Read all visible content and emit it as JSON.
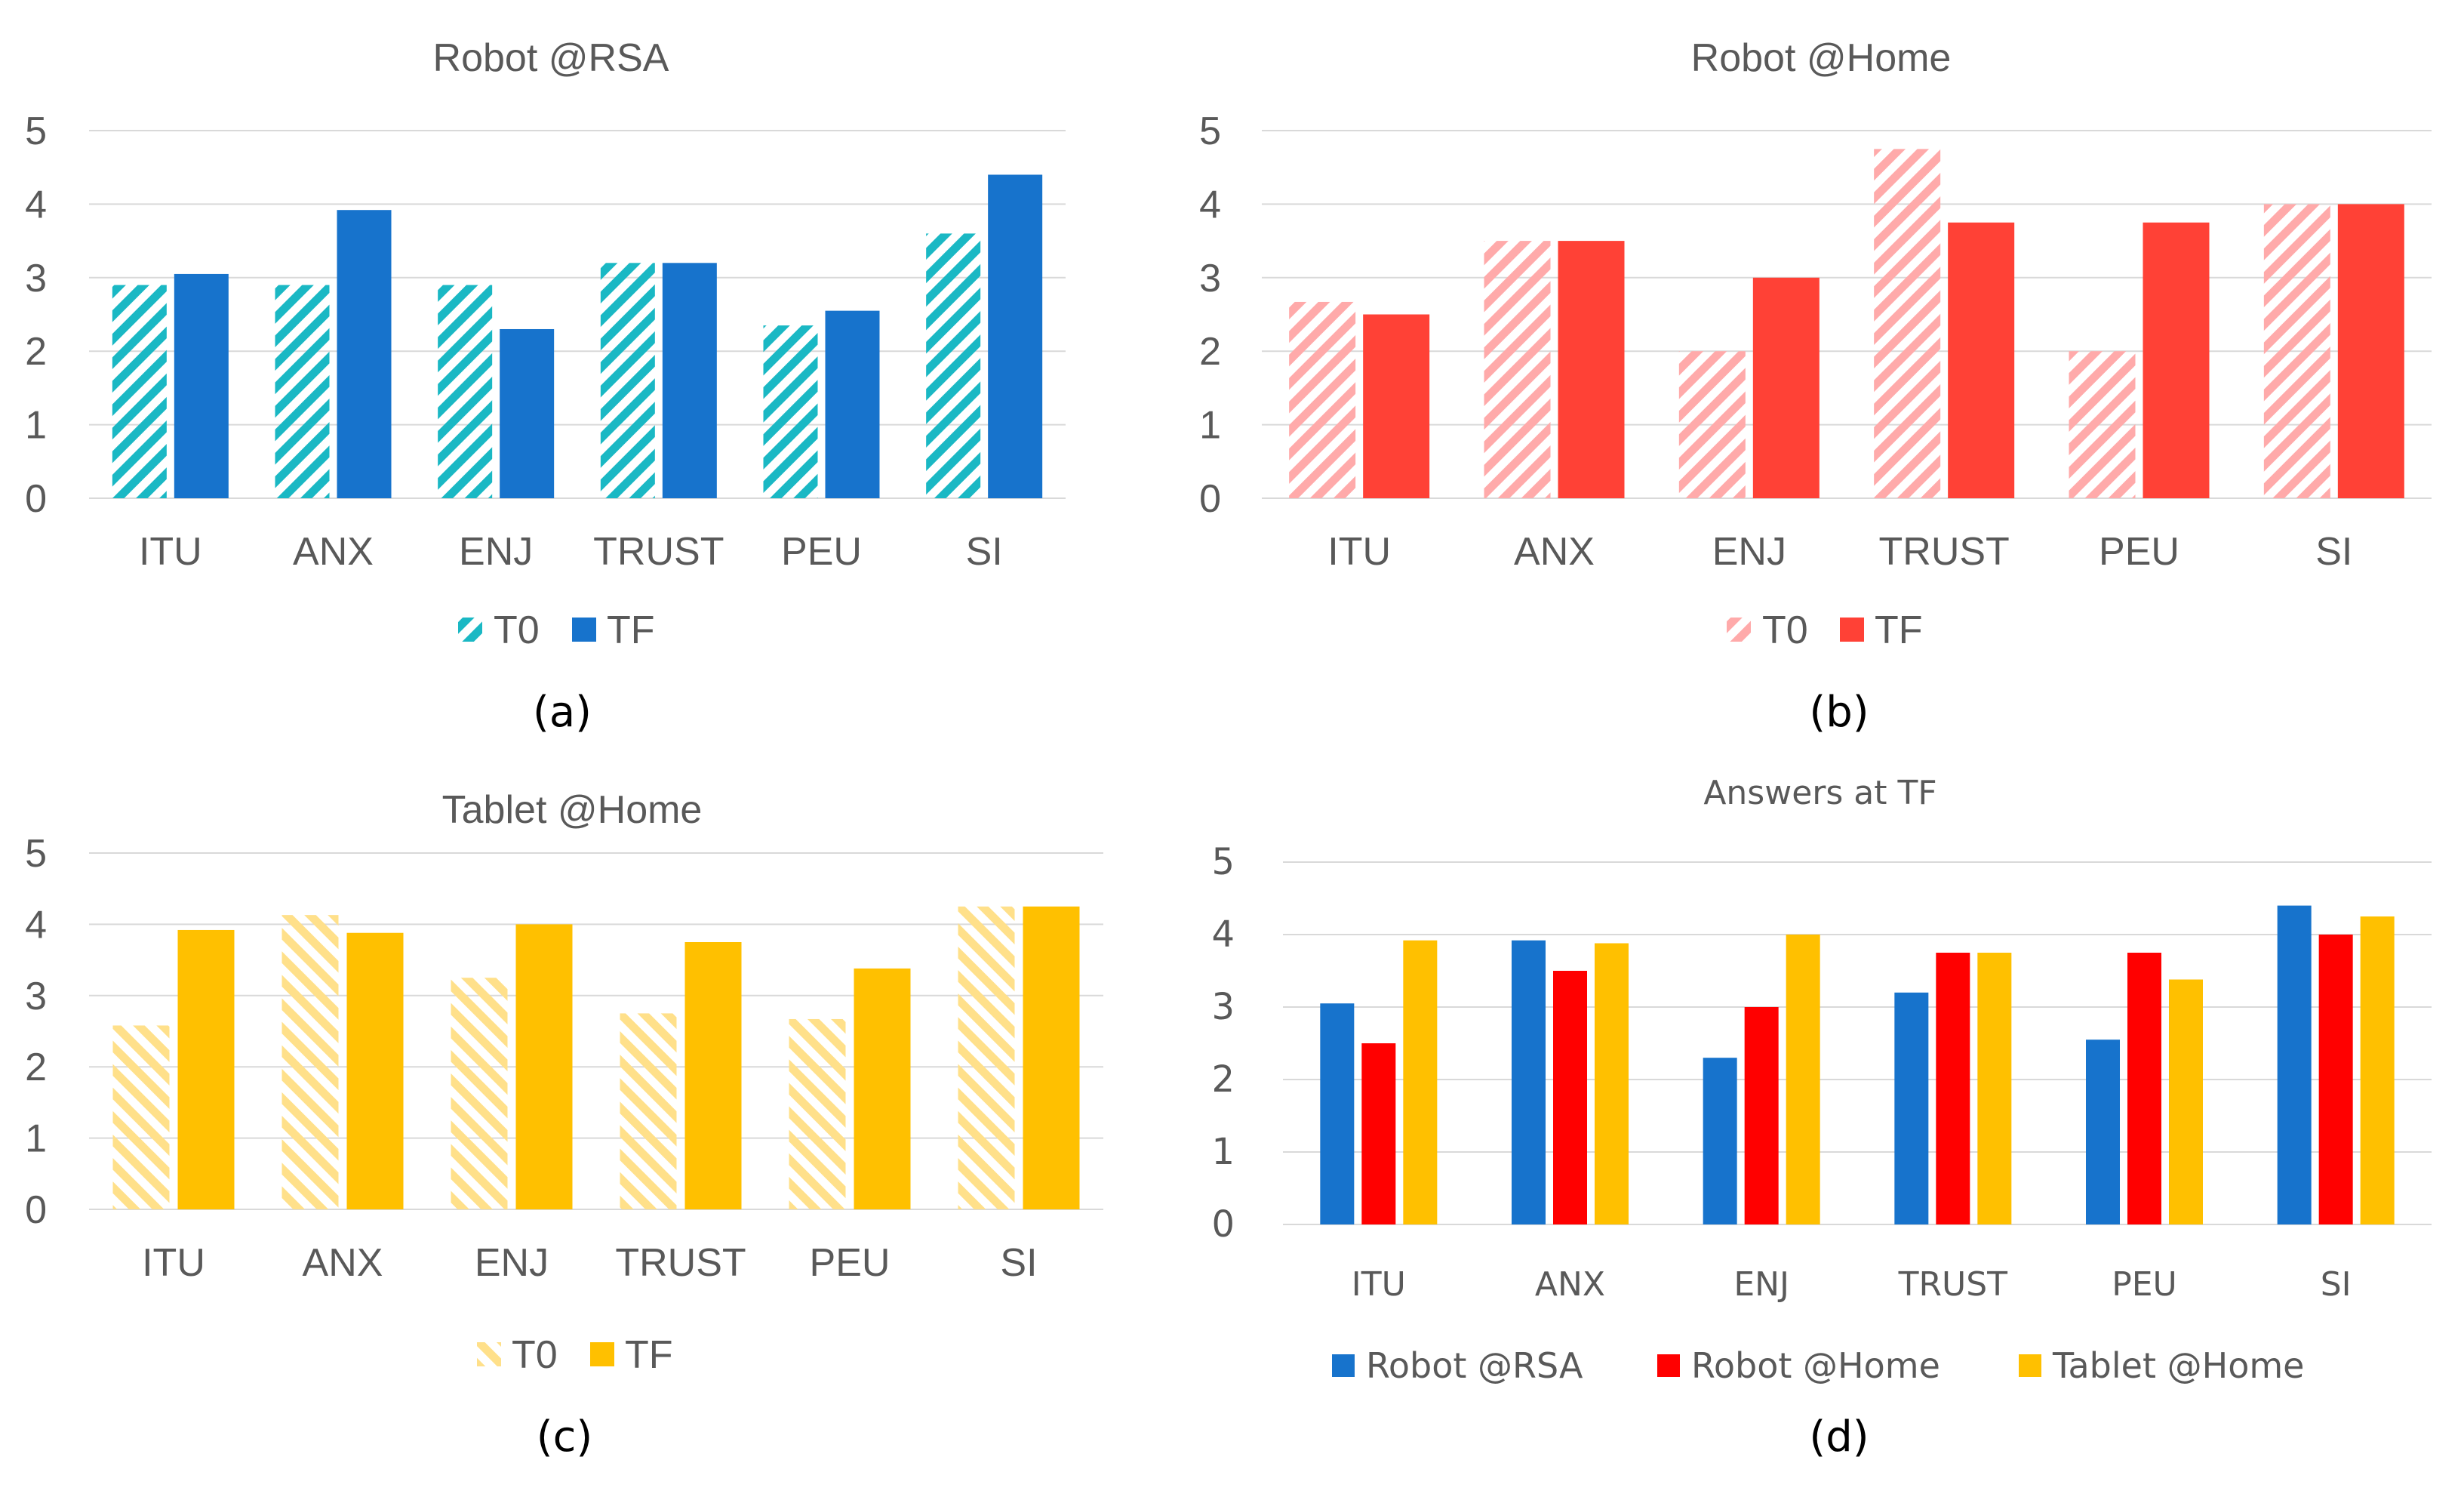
{
  "colors": {
    "a_T0": "#1ab8c4",
    "a_TF": "#1773cc",
    "b_T0": "#ffaaaa",
    "b_TF": "#ff4136",
    "c_T0": "#ffe08a",
    "c_TF": "#ffc000",
    "d_s1": "#1773cc",
    "d_s2": "#ff0000",
    "d_s3": "#ffc000"
  },
  "chart_data": [
    {
      "id": "a",
      "type": "bar",
      "title": "Robot @RSA",
      "caption": "(a)",
      "categories": [
        "ITU",
        "ANX",
        "ENJ",
        "TRUST",
        "PEU",
        "SI"
      ],
      "ylim": [
        0,
        5
      ],
      "yticks": [
        "0",
        "1",
        "2",
        "3",
        "4",
        "5"
      ],
      "grid": true,
      "legend_position": "bottom",
      "series": [
        {
          "name": "T0",
          "pattern": "hatch",
          "values": [
            2.9,
            2.9,
            2.9,
            3.2,
            2.35,
            3.6
          ]
        },
        {
          "name": "TF",
          "pattern": "solid",
          "values": [
            3.05,
            3.92,
            2.3,
            3.2,
            2.55,
            4.4
          ]
        }
      ]
    },
    {
      "id": "b",
      "type": "bar",
      "title": "Robot @Home",
      "caption": "(b)",
      "categories": [
        "ITU",
        "ANX",
        "ENJ",
        "TRUST",
        "PEU",
        "SI"
      ],
      "ylim": [
        0,
        5
      ],
      "yticks": [
        "0",
        "1",
        "2",
        "3",
        "4",
        "5"
      ],
      "grid": true,
      "legend_position": "bottom",
      "series": [
        {
          "name": "T0",
          "pattern": "hatch",
          "values": [
            2.67,
            3.5,
            2.0,
            4.75,
            2.0,
            4.0
          ]
        },
        {
          "name": "TF",
          "pattern": "solid",
          "values": [
            2.5,
            3.5,
            3.0,
            3.75,
            3.75,
            4.0
          ]
        }
      ]
    },
    {
      "id": "c",
      "type": "bar",
      "title": "Tablet @Home",
      "caption": "(c)",
      "categories": [
        "ITU",
        "ANX",
        "ENJ",
        "TRUST",
        "PEU",
        "SI"
      ],
      "ylim": [
        0,
        5
      ],
      "yticks": [
        "0",
        "1",
        "2",
        "3",
        "4",
        "5"
      ],
      "grid": true,
      "legend_position": "bottom",
      "series": [
        {
          "name": "T0",
          "pattern": "hatch",
          "values": [
            2.58,
            4.13,
            3.25,
            2.75,
            2.67,
            4.25
          ]
        },
        {
          "name": "TF",
          "pattern": "solid",
          "values": [
            3.92,
            3.88,
            4.0,
            3.75,
            3.38,
            4.25
          ]
        }
      ]
    },
    {
      "id": "d",
      "type": "bar",
      "title": "Answers at TF",
      "caption": "(d)",
      "categories": [
        "ITU",
        "ANX",
        "ENJ",
        "TRUST",
        "PEU",
        "SI"
      ],
      "ylim": [
        0,
        5
      ],
      "yticks": [
        "0",
        "1",
        "2",
        "3",
        "4",
        "5"
      ],
      "grid": true,
      "legend_position": "bottom",
      "series": [
        {
          "name": "Robot @RSA",
          "pattern": "solid",
          "values": [
            3.05,
            3.92,
            2.3,
            3.2,
            2.55,
            4.4
          ]
        },
        {
          "name": "Robot @Home",
          "pattern": "solid",
          "values": [
            2.5,
            3.5,
            3.0,
            3.75,
            3.75,
            4.0
          ]
        },
        {
          "name": "Tablet @Home",
          "pattern": "solid",
          "values": [
            3.92,
            3.88,
            4.0,
            3.75,
            3.38,
            4.25
          ]
        }
      ]
    }
  ]
}
